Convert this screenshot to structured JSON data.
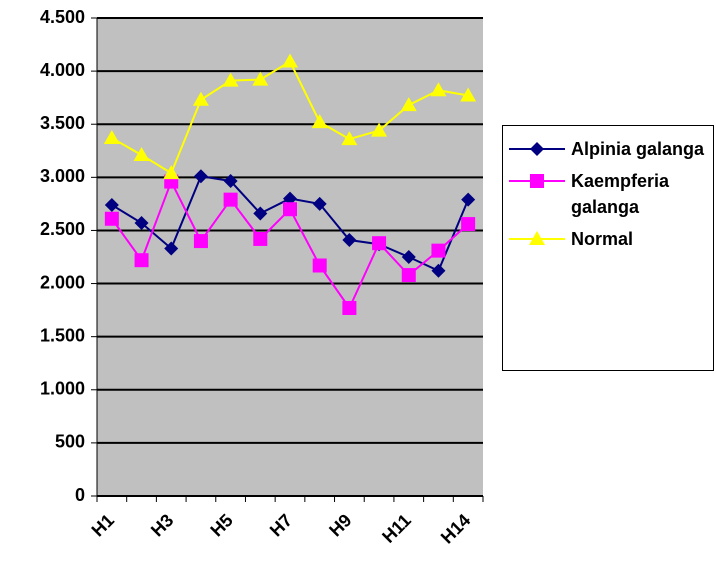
{
  "chart_data": {
    "type": "line",
    "categories": [
      "H1",
      null,
      "H3",
      null,
      "H5",
      null,
      "H7",
      null,
      "H9",
      null,
      "H11",
      null,
      "H14"
    ],
    "series": [
      {
        "name": "Alpinia galanga",
        "color": "#000080",
        "marker": "diamond",
        "values": [
          2740,
          2570,
          2330,
          3010,
          2965,
          2660,
          2800,
          2750,
          2410,
          2370,
          2250,
          2120,
          2790
        ]
      },
      {
        "name": "Kaempferia galanga",
        "color": "#ff00ff",
        "marker": "square",
        "values": [
          2610,
          2220,
          2960,
          2400,
          2790,
          2420,
          2700,
          2170,
          1770,
          2380,
          2080,
          2310,
          2560
        ]
      },
      {
        "name": "Normal",
        "color": "#ffff00",
        "marker": "triangle",
        "values": [
          3370,
          3210,
          3040,
          3730,
          3910,
          3920,
          4090,
          3520,
          3360,
          3440,
          3680,
          3820,
          3770
        ]
      }
    ],
    "ylim": [
      0,
      4500
    ],
    "yticks": [
      0,
      500,
      {
        "value": 1000,
        "label": "1.000"
      },
      {
        "value": 1500,
        "label": "1.500"
      },
      {
        "value": 2000,
        "label": "2.000"
      },
      {
        "value": 2500,
        "label": "2.500"
      },
      {
        "value": 3000,
        "label": "3.000"
      },
      {
        "value": 3500,
        "label": "3.500"
      },
      {
        "value": 4000,
        "label": "4.000"
      },
      {
        "value": 4500,
        "label": "4.500"
      }
    ],
    "grid": true,
    "legend": "right"
  }
}
